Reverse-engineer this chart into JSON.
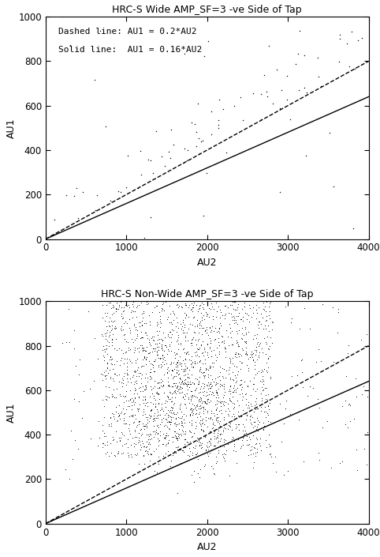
{
  "title_top": "HRC-S Wide AMP_SF=3 -ve Side of Tap",
  "title_bot": "HRC-S Non-Wide AMP_SF=3 -ve Side of Tap",
  "xlabel": "AU2",
  "ylabel": "AU1",
  "xlim": [
    0,
    4000
  ],
  "ylim": [
    0,
    1000
  ],
  "xticks": [
    0,
    1000,
    2000,
    3000,
    4000
  ],
  "yticks": [
    0,
    200,
    400,
    600,
    800,
    1000
  ],
  "solid_slope": 0.16,
  "dashed_slope": 0.2,
  "legend_text1": "Dashed line: AU1 = 0.2*AU2",
  "legend_text2": "Solid line:  AU1 = 0.16*AU2",
  "bg_color": "#ffffff",
  "dot_color": "#000000",
  "line_color": "#000000",
  "seed_wide": 7,
  "seed_nonwide": 55,
  "n_wide": 100,
  "n_nonwide": 2200
}
